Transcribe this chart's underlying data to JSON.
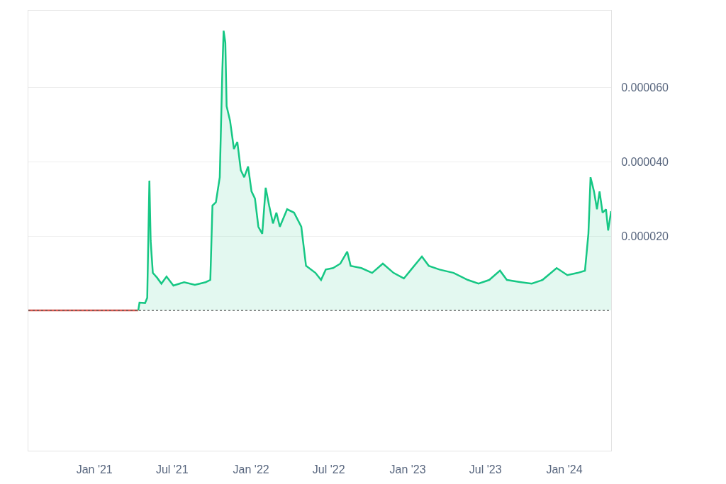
{
  "chart_data": {
    "type": "area",
    "series": [
      {
        "type": "line",
        "color": "#e0584f",
        "x": [
          "2020-07-31",
          "2021-04-13"
        ],
        "values": [
          0.0,
          0.0
        ]
      },
      {
        "color": "#16c784",
        "x": [
          "2021-04-13",
          "2021-04-16",
          "2021-04-29",
          "2021-05-04",
          "2021-05-09",
          "2021-05-12",
          "2021-05-17",
          "2021-05-27",
          "2021-06-06",
          "2021-06-18",
          "2021-07-04",
          "2021-07-29",
          "2021-08-23",
          "2021-09-17",
          "2021-09-28",
          "2021-10-03",
          "2021-10-11",
          "2021-10-20",
          "2021-10-26",
          "2021-10-29",
          "2021-11-02",
          "2021-11-05",
          "2021-11-13",
          "2021-11-22",
          "2021-11-30",
          "2021-12-08",
          "2021-12-16",
          "2021-12-25",
          "2022-01-02",
          "2022-01-10",
          "2022-01-18",
          "2022-01-27",
          "2022-02-04",
          "2022-02-12",
          "2022-02-21",
          "2022-03-01",
          "2022-03-09",
          "2022-03-26",
          "2022-04-11",
          "2022-04-28",
          "2022-05-09",
          "2022-05-31",
          "2022-06-13",
          "2022-06-24",
          "2022-07-11",
          "2022-07-28",
          "2022-08-13",
          "2022-08-21",
          "2022-09-15",
          "2022-10-10",
          "2022-11-04",
          "2022-11-29",
          "2022-12-23",
          "2023-01-09",
          "2023-02-03",
          "2023-02-19",
          "2023-03-16",
          "2023-04-18",
          "2023-05-21",
          "2023-06-15",
          "2023-07-10",
          "2023-08-04",
          "2023-08-20",
          "2023-09-22",
          "2023-10-17",
          "2023-11-11",
          "2023-12-14",
          "2024-01-08",
          "2024-02-01",
          "2024-02-18",
          "2024-02-26",
          "2024-03-02",
          "2024-03-10",
          "2024-03-17",
          "2024-03-23",
          "2024-03-30",
          "2024-04-07",
          "2024-04-12",
          "2024-04-19"
        ],
        "values": [
          0.0,
          2.1e-06,
          2e-06,
          3.4e-06,
          3.49e-05,
          1.87e-05,
          1.01e-05,
          8.8e-06,
          7.2e-06,
          9.1e-06,
          6.7e-06,
          7.6e-06,
          6.9e-06,
          7.6e-06,
          8.2e-06,
          2.82e-05,
          2.91e-05,
          3.58e-05,
          6.44e-05,
          7.52e-05,
          7.2e-05,
          5.49e-05,
          5.1e-05,
          4.34e-05,
          4.53e-05,
          3.77e-05,
          3.58e-05,
          3.87e-05,
          3.2e-05,
          3.01e-05,
          2.25e-05,
          2.06e-05,
          3.3e-05,
          2.82e-05,
          2.34e-05,
          2.63e-05,
          2.25e-05,
          2.72e-05,
          2.63e-05,
          2.25e-05,
          1.2e-05,
          1.01e-05,
          8.2e-06,
          1.1e-05,
          1.14e-05,
          1.26e-05,
          1.58e-05,
          1.2e-05,
          1.14e-05,
          1.01e-05,
          1.26e-05,
          1.01e-05,
          8.6e-06,
          1.1e-05,
          1.45e-05,
          1.2e-05,
          1.1e-05,
          1.01e-05,
          8.2e-06,
          7.2e-06,
          8.2e-06,
          1.07e-05,
          8.2e-06,
          7.6e-06,
          7.2e-06,
          8.2e-06,
          1.14e-05,
          9.5e-06,
          1.01e-05,
          1.07e-05,
          2.06e-05,
          3.58e-05,
          3.2e-05,
          2.72e-05,
          3.2e-05,
          2.63e-05,
          2.72e-05,
          2.15e-05,
          2.67e-05
        ]
      }
    ],
    "xlim": [
      "2020-07-31",
      "2024-04-19"
    ],
    "xticks": [
      {
        "value": "2021-01-01",
        "label": "Jan '21"
      },
      {
        "value": "2021-07-01",
        "label": "Jul '21"
      },
      {
        "value": "2022-01-01",
        "label": "Jan '22"
      },
      {
        "value": "2022-07-01",
        "label": "Jul '22"
      },
      {
        "value": "2023-01-01",
        "label": "Jan '23"
      },
      {
        "value": "2023-07-01",
        "label": "Jul '23"
      },
      {
        "value": "2024-01-01",
        "label": "Jan '24"
      }
    ],
    "ylim": [
      -3.77e-05,
      8.06e-05
    ],
    "yticks": [
      {
        "value": 2e-05,
        "label": "0.000020"
      },
      {
        "value": 4e-05,
        "label": "0.000040"
      },
      {
        "value": 6e-05,
        "label": "0.000060"
      }
    ],
    "ref_lines": [
      {
        "axis": "y",
        "value": 0,
        "label": null,
        "color": "#555555",
        "line_style": "dotted"
      }
    ],
    "grid": "y"
  }
}
